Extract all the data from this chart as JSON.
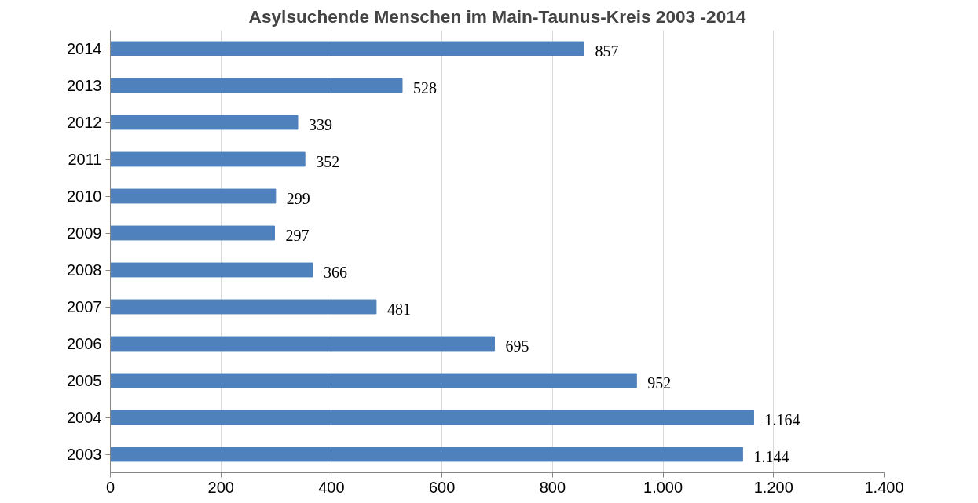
{
  "chart_data": {
    "type": "bar",
    "orientation": "horizontal",
    "title": "Asylsuchende Menschen im Main-Taunus-Kreis 2003 -2014",
    "categories": [
      "2014",
      "2013",
      "2012",
      "2011",
      "2010",
      "2009",
      "2008",
      "2007",
      "2006",
      "2005",
      "2004",
      "2003"
    ],
    "values": [
      857,
      528,
      339,
      352,
      299,
      297,
      366,
      481,
      695,
      952,
      1164,
      1144
    ],
    "value_labels": [
      "857",
      "528",
      "339",
      "352",
      "299",
      "297",
      "366",
      "481",
      "695",
      "952",
      "1.164",
      "1.144"
    ],
    "color": "#4f81bd",
    "xlim": [
      0,
      1400
    ],
    "xticks": [
      0,
      200,
      400,
      600,
      800,
      {
        "value": 1000,
        "label": "1.000"
      },
      {
        "value": 1200,
        "label": "1.200"
      },
      {
        "value": 1400,
        "label": "1.400"
      }
    ],
    "grid": "x"
  }
}
